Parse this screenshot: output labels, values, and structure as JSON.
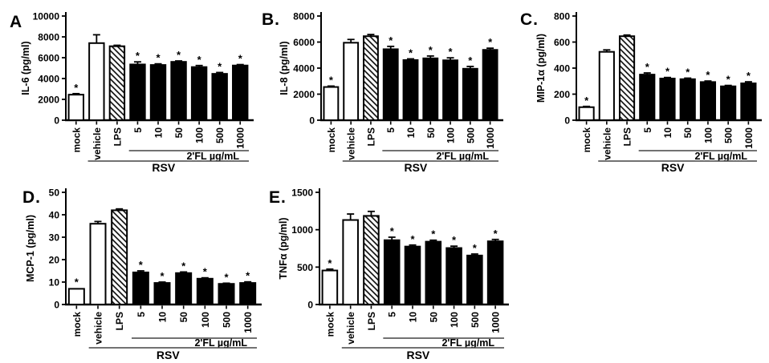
{
  "figure": {
    "background": "#ffffff",
    "ink_color": "#000000",
    "categories": [
      "mock",
      "vehicle",
      "LPS",
      "5",
      "10",
      "50",
      "100",
      "500",
      "1000"
    ],
    "bar_styles": [
      "open",
      "open",
      "hatched",
      "solid",
      "solid",
      "solid",
      "solid",
      "solid",
      "solid"
    ],
    "significance_marker": "*",
    "group_lines": [
      {
        "label": "2'FL µg/mL",
        "from_category": "5",
        "to_category": "1000"
      },
      {
        "label": "RSV",
        "from_category": "vehicle",
        "to_category": "1000"
      }
    ]
  },
  "chart_data": [
    {
      "type": "bar",
      "panel": "A",
      "ylabel": "IL-6 (pg/ml)",
      "ylim": [
        0,
        10000
      ],
      "yticks": [
        0,
        2000,
        4000,
        6000,
        8000,
        10000
      ],
      "categories": [
        "mock",
        "vehicle",
        "LPS",
        "5",
        "10",
        "50",
        "100",
        "500",
        "1000"
      ],
      "values": [
        2450,
        7400,
        7100,
        5350,
        5300,
        5600,
        5100,
        4450,
        5250
      ],
      "errors": [
        100,
        800,
        90,
        250,
        110,
        90,
        150,
        130,
        90
      ],
      "significant": [
        true,
        false,
        false,
        true,
        true,
        true,
        true,
        true,
        true
      ]
    },
    {
      "type": "bar",
      "panel": "B.",
      "ylabel": "IL-8 (pg/ml)",
      "ylim": [
        0,
        8000
      ],
      "yticks": [
        0,
        2000,
        4000,
        6000,
        8000
      ],
      "categories": [
        "mock",
        "vehicle",
        "LPS",
        "5",
        "10",
        "50",
        "100",
        "500",
        "1000"
      ],
      "values": [
        2550,
        5950,
        6450,
        5450,
        4620,
        4750,
        4600,
        3950,
        5400
      ],
      "errors": [
        70,
        250,
        130,
        220,
        90,
        180,
        190,
        180,
        130
      ],
      "significant": [
        true,
        false,
        false,
        true,
        true,
        true,
        true,
        true,
        true
      ]
    },
    {
      "type": "bar",
      "panel": "C.",
      "ylabel": "MIP-1α (pg/ml)",
      "ylim": [
        0,
        800
      ],
      "yticks": [
        0,
        200,
        400,
        600,
        800
      ],
      "categories": [
        "mock",
        "vehicle",
        "LPS",
        "5",
        "10",
        "50",
        "100",
        "500",
        "1000"
      ],
      "values": [
        100,
        525,
        645,
        350,
        320,
        315,
        293,
        260,
        283
      ],
      "errors": [
        6,
        15,
        9,
        13,
        8,
        8,
        8,
        7,
        12
      ],
      "significant": [
        true,
        false,
        false,
        true,
        true,
        true,
        true,
        true,
        true
      ]
    },
    {
      "type": "bar",
      "panel": "D.",
      "ylabel": "MCP-1 (pg/ml)",
      "ylim": [
        0,
        50
      ],
      "yticks": [
        0,
        10,
        20,
        30,
        40,
        50
      ],
      "categories": [
        "mock",
        "vehicle",
        "LPS",
        "5",
        "10",
        "50",
        "100",
        "500",
        "1000"
      ],
      "values": [
        7,
        36,
        42,
        14.3,
        9.6,
        14,
        11.5,
        9.2,
        9.6
      ],
      "errors": [
        0,
        1,
        0.6,
        0.7,
        0.4,
        0.5,
        0.4,
        0.3,
        0.5
      ],
      "significant": [
        true,
        false,
        false,
        true,
        true,
        true,
        true,
        true,
        true
      ]
    },
    {
      "type": "bar",
      "panel": "E.",
      "ylabel": "TNFα (pg/ml)",
      "ylim": [
        0,
        1500
      ],
      "yticks": [
        0,
        500,
        1000,
        1500
      ],
      "categories": [
        "mock",
        "vehicle",
        "LPS",
        "5",
        "10",
        "50",
        "100",
        "500",
        "1000"
      ],
      "values": [
        455,
        1130,
        1185,
        860,
        775,
        840,
        755,
        655,
        845
      ],
      "errors": [
        18,
        80,
        60,
        40,
        20,
        20,
        25,
        20,
        25
      ],
      "significant": [
        true,
        false,
        false,
        true,
        true,
        true,
        true,
        true,
        true
      ]
    }
  ]
}
